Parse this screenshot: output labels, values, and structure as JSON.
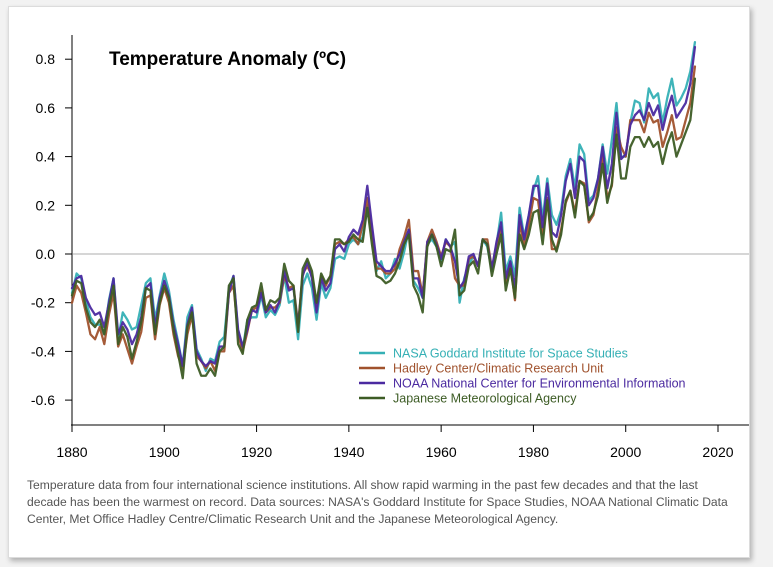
{
  "caption": "Temperature data from four international science institutions. All show rapid warming in the past few decades and that the last decade has been the warmest on record. Data sources: NASA's Goddard Institute for Space Studies, NOAA National Climatic Data Center, Met Office Hadley Centre/Climatic Research Unit and the Japanese Meteorological Agency.",
  "chart_data": {
    "type": "line",
    "title": "Temperature Anomaly (ºC)",
    "xlabel": "",
    "ylabel": "",
    "xlim": [
      1880,
      2020
    ],
    "ylim": [
      -0.75,
      0.9
    ],
    "xticks": [
      1880,
      1900,
      1920,
      1940,
      1960,
      1980,
      2000,
      2020
    ],
    "yticks": [
      -0.6,
      -0.4,
      -0.2,
      0.0,
      0.2,
      0.4,
      0.6,
      0.8
    ],
    "ytick_labels": [
      "-0.6",
      "-0.4",
      "-0.2",
      "0.0",
      "0.2",
      "0.4",
      "0.6",
      "0.8"
    ],
    "zero_line": true,
    "grid": false,
    "legend_position": "bottom-right",
    "x_start": 1880,
    "series": [
      {
        "name": "NASA Goddard Institute for Space Studies",
        "color": "#35b0b5",
        "values": [
          -0.16,
          -0.08,
          -0.1,
          -0.19,
          -0.26,
          -0.29,
          -0.29,
          -0.33,
          -0.19,
          -0.1,
          -0.35,
          -0.24,
          -0.27,
          -0.31,
          -0.3,
          -0.21,
          -0.12,
          -0.1,
          -0.27,
          -0.17,
          -0.08,
          -0.15,
          -0.27,
          -0.36,
          -0.46,
          -0.26,
          -0.21,
          -0.39,
          -0.43,
          -0.48,
          -0.43,
          -0.44,
          -0.36,
          -0.34,
          -0.14,
          -0.09,
          -0.32,
          -0.39,
          -0.27,
          -0.26,
          -0.26,
          -0.17,
          -0.26,
          -0.23,
          -0.25,
          -0.21,
          -0.09,
          -0.2,
          -0.19,
          -0.35,
          -0.13,
          -0.08,
          -0.14,
          -0.27,
          -0.12,
          -0.18,
          -0.14,
          -0.02,
          -0.01,
          -0.02,
          0.04,
          0.06,
          0.04,
          0.07,
          0.2,
          0.09,
          -0.07,
          -0.03,
          -0.1,
          -0.08,
          -0.02,
          -0.06,
          0.01,
          0.1,
          -0.11,
          -0.14,
          -0.18,
          0.04,
          0.06,
          0.03,
          -0.03,
          0.06,
          0.03,
          0.05,
          -0.2,
          -0.1,
          -0.04,
          -0.01,
          -0.05,
          0.06,
          0.03,
          -0.07,
          0.04,
          0.17,
          -0.07,
          -0.01,
          -0.09,
          0.19,
          0.07,
          0.16,
          0.26,
          0.32,
          0.14,
          0.31,
          0.16,
          0.12,
          0.18,
          0.32,
          0.39,
          0.27,
          0.45,
          0.41,
          0.22,
          0.24,
          0.31,
          0.45,
          0.33,
          0.47,
          0.62,
          0.4,
          0.4,
          0.54,
          0.63,
          0.62,
          0.54,
          0.68,
          0.64,
          0.66,
          0.54,
          0.64,
          0.72,
          0.61,
          0.64,
          0.68,
          0.75,
          0.87
        ]
      },
      {
        "name": "Hadley Center/Climatic Research Unit",
        "color": "#a0522d",
        "values": [
          -0.2,
          -0.13,
          -0.16,
          -0.24,
          -0.33,
          -0.35,
          -0.3,
          -0.37,
          -0.25,
          -0.16,
          -0.38,
          -0.33,
          -0.39,
          -0.45,
          -0.38,
          -0.32,
          -0.18,
          -0.17,
          -0.35,
          -0.21,
          -0.14,
          -0.2,
          -0.33,
          -0.42,
          -0.47,
          -0.33,
          -0.25,
          -0.42,
          -0.44,
          -0.47,
          -0.44,
          -0.48,
          -0.4,
          -0.4,
          -0.16,
          -0.13,
          -0.33,
          -0.4,
          -0.32,
          -0.23,
          -0.22,
          -0.15,
          -0.24,
          -0.22,
          -0.22,
          -0.2,
          -0.09,
          -0.14,
          -0.13,
          -0.29,
          -0.08,
          -0.05,
          -0.09,
          -0.22,
          -0.09,
          -0.13,
          -0.09,
          0.04,
          0.05,
          0.04,
          0.06,
          0.07,
          0.04,
          0.12,
          0.23,
          0.09,
          -0.06,
          -0.06,
          -0.08,
          -0.08,
          -0.06,
          0.02,
          0.07,
          0.14,
          -0.07,
          -0.07,
          -0.17,
          0.05,
          0.1,
          0.05,
          -0.01,
          0.05,
          0.03,
          -0.1,
          -0.13,
          -0.13,
          -0.02,
          -0.01,
          -0.05,
          0.06,
          0.06,
          -0.06,
          0.03,
          0.11,
          -0.12,
          -0.04,
          -0.19,
          0.13,
          0.03,
          0.12,
          0.23,
          0.22,
          0.08,
          0.23,
          0.02,
          0.02,
          0.1,
          0.21,
          0.26,
          0.17,
          0.3,
          0.29,
          0.13,
          0.16,
          0.27,
          0.41,
          0.23,
          0.28,
          0.52,
          0.44,
          0.4,
          0.55,
          0.55,
          0.55,
          0.5,
          0.58,
          0.54,
          0.55,
          0.44,
          0.5,
          0.57,
          0.47,
          0.48,
          0.55,
          0.62,
          0.77
        ]
      },
      {
        "name": "NOAA National Center for Environmental Information",
        "color": "#4b2aa0",
        "values": [
          -0.14,
          -0.1,
          -0.09,
          -0.18,
          -0.22,
          -0.25,
          -0.24,
          -0.3,
          -0.2,
          -0.1,
          -0.33,
          -0.28,
          -0.31,
          -0.37,
          -0.33,
          -0.26,
          -0.14,
          -0.12,
          -0.3,
          -0.18,
          -0.11,
          -0.17,
          -0.29,
          -0.37,
          -0.46,
          -0.29,
          -0.22,
          -0.4,
          -0.44,
          -0.46,
          -0.44,
          -0.45,
          -0.38,
          -0.38,
          -0.16,
          -0.09,
          -0.31,
          -0.38,
          -0.31,
          -0.23,
          -0.24,
          -0.16,
          -0.24,
          -0.21,
          -0.24,
          -0.19,
          -0.07,
          -0.15,
          -0.14,
          -0.3,
          -0.09,
          -0.03,
          -0.1,
          -0.24,
          -0.1,
          -0.15,
          -0.12,
          0.02,
          0.04,
          0.01,
          0.07,
          0.1,
          0.08,
          0.14,
          0.28,
          0.12,
          -0.03,
          -0.05,
          -0.07,
          -0.07,
          -0.04,
          0.0,
          0.05,
          0.1,
          -0.1,
          -0.1,
          -0.18,
          0.05,
          0.08,
          0.04,
          -0.02,
          0.06,
          0.03,
          -0.03,
          -0.14,
          -0.11,
          -0.01,
          0.0,
          -0.05,
          0.06,
          0.04,
          -0.06,
          0.05,
          0.13,
          -0.1,
          -0.03,
          -0.14,
          0.16,
          0.06,
          0.16,
          0.28,
          0.28,
          0.11,
          0.29,
          0.09,
          0.07,
          0.16,
          0.3,
          0.37,
          0.23,
          0.4,
          0.38,
          0.2,
          0.23,
          0.31,
          0.44,
          0.27,
          0.37,
          0.58,
          0.39,
          0.41,
          0.53,
          0.57,
          0.59,
          0.55,
          0.62,
          0.57,
          0.61,
          0.51,
          0.59,
          0.65,
          0.56,
          0.59,
          0.62,
          0.7,
          0.85
        ]
      },
      {
        "name": "Japanese Meteorological Agency",
        "color": "#3d5c25",
        "values": [
          -0.17,
          -0.11,
          -0.12,
          -0.22,
          -0.28,
          -0.3,
          -0.27,
          -0.33,
          -0.22,
          -0.13,
          -0.37,
          -0.3,
          -0.34,
          -0.43,
          -0.36,
          -0.28,
          -0.14,
          -0.15,
          -0.33,
          -0.2,
          -0.13,
          -0.18,
          -0.31,
          -0.41,
          -0.51,
          -0.3,
          -0.24,
          -0.45,
          -0.5,
          -0.5,
          -0.47,
          -0.5,
          -0.4,
          -0.38,
          -0.13,
          -0.1,
          -0.37,
          -0.41,
          -0.27,
          -0.22,
          -0.21,
          -0.12,
          -0.23,
          -0.19,
          -0.2,
          -0.18,
          -0.04,
          -0.11,
          -0.13,
          -0.32,
          -0.06,
          -0.02,
          -0.07,
          -0.2,
          -0.08,
          -0.12,
          -0.09,
          0.06,
          0.06,
          0.04,
          0.05,
          0.08,
          0.06,
          0.05,
          0.19,
          0.04,
          -0.09,
          -0.1,
          -0.12,
          -0.11,
          -0.08,
          -0.03,
          0.04,
          0.08,
          -0.13,
          -0.17,
          -0.24,
          0.03,
          0.08,
          0.03,
          -0.05,
          0.02,
          0.01,
          0.1,
          -0.17,
          -0.15,
          -0.05,
          -0.03,
          -0.08,
          0.06,
          0.04,
          -0.09,
          0.0,
          0.08,
          -0.15,
          -0.06,
          -0.18,
          0.08,
          0.02,
          0.08,
          0.17,
          0.18,
          0.04,
          0.22,
          0.06,
          0.01,
          0.08,
          0.22,
          0.26,
          0.15,
          0.3,
          0.28,
          0.14,
          0.17,
          0.24,
          0.37,
          0.21,
          0.29,
          0.49,
          0.31,
          0.31,
          0.44,
          0.48,
          0.48,
          0.44,
          0.48,
          0.44,
          0.46,
          0.37,
          0.45,
          0.5,
          0.4,
          0.45,
          0.5,
          0.55,
          0.72
        ]
      }
    ]
  }
}
